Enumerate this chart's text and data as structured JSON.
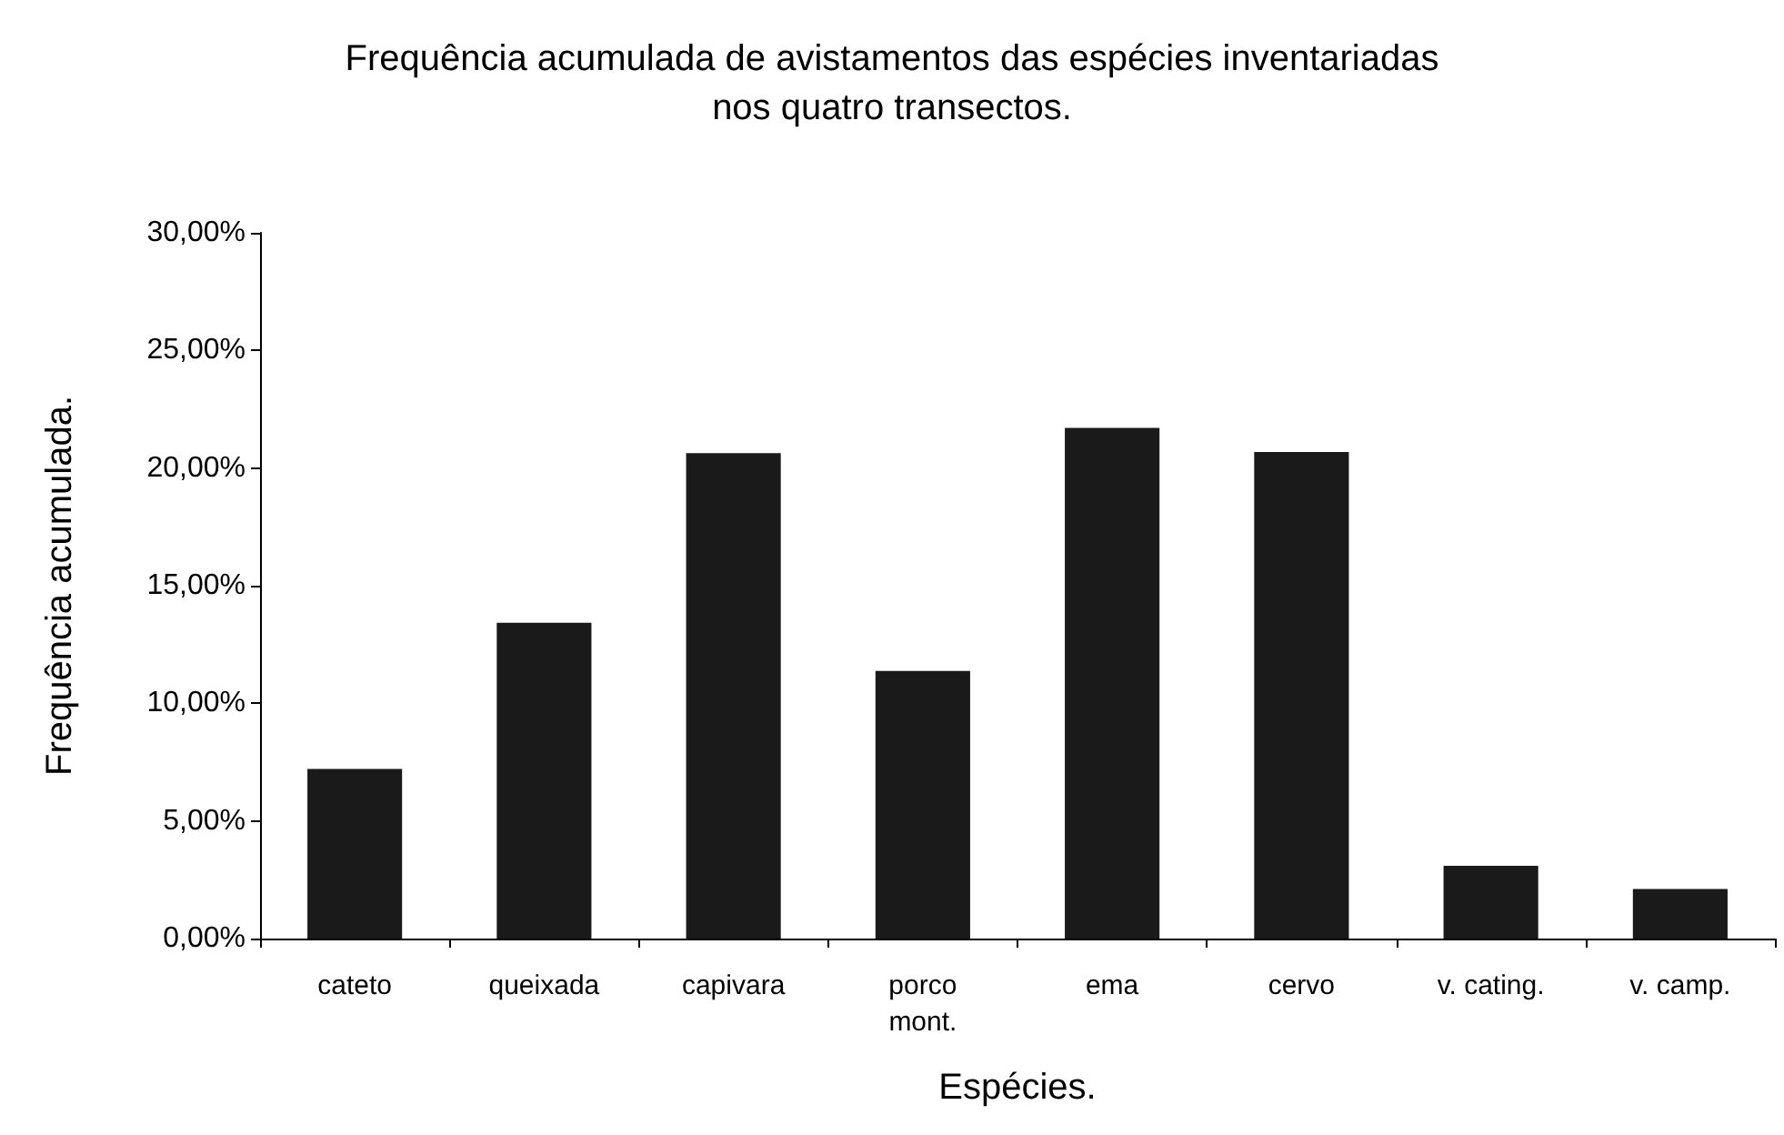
{
  "chart_data": {
    "type": "bar",
    "title": "Frequência acumulada de avistamentos das espécies inventariadas\nnos quatro transectos.",
    "xlabel": "Espécies.",
    "ylabel": "Frequência acumulada.",
    "categories": [
      "cateto",
      "queixada",
      "capivara",
      "porco\nmont.",
      "ema",
      "cervo",
      "v. cating.",
      "v. camp."
    ],
    "values": [
      7.21,
      13.42,
      20.63,
      11.38,
      21.71,
      20.68,
      3.09,
      2.11
    ],
    "color": "#1a1a1a",
    "ylim": [
      0,
      30
    ],
    "yticks": [
      {
        "value": 0,
        "label": "0,00%"
      },
      {
        "value": 5,
        "label": "5,00%"
      },
      {
        "value": 10,
        "label": "10,00%"
      },
      {
        "value": 15,
        "label": "15,00%"
      },
      {
        "value": 20,
        "label": "20,00%"
      },
      {
        "value": 25,
        "label": "25,00%"
      },
      {
        "value": 30,
        "label": "30,00%"
      }
    ],
    "grid": false
  }
}
